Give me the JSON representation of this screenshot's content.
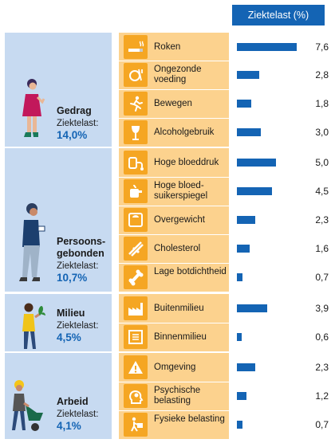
{
  "header": {
    "column_title": "Ziektelast (%)"
  },
  "chart_data": {
    "type": "bar",
    "title": "",
    "ylabel": "Ziektelast (%)",
    "xlim": [
      0,
      7.6
    ],
    "groups": [
      {
        "name": "Gedrag",
        "label": "Ziektelast:",
        "total": "14,0%",
        "icon": "woman-smoking-icon",
        "items": [
          {
            "label": "Roken",
            "value": 7.6,
            "display": "7,6",
            "icon": "cigarette-icon"
          },
          {
            "label": "Ongezonde voeding",
            "value": 2.8,
            "display": "2,8",
            "icon": "food-icon"
          },
          {
            "label": "Bewegen",
            "value": 1.8,
            "display": "1,8",
            "icon": "running-icon"
          },
          {
            "label": "Alcoholgebruik",
            "value": 3.0,
            "display": "3,0",
            "icon": "wine-glass-icon"
          }
        ]
      },
      {
        "name": "Persoons-gebonden",
        "label": "Ziektelast:",
        "total": "10,7%",
        "icon": "older-woman-cup-icon",
        "items": [
          {
            "label": "Hoge bloeddruk",
            "value": 5.0,
            "display": "5,0",
            "icon": "blood-pressure-icon"
          },
          {
            "label": "Hoge bloed-suikerspiegel",
            "value": 4.5,
            "display": "4,5",
            "icon": "glucose-meter-icon"
          },
          {
            "label": "Overgewicht",
            "value": 2.3,
            "display": "2,3",
            "icon": "scale-icon"
          },
          {
            "label": "Cholesterol",
            "value": 1.6,
            "display": "1,6",
            "icon": "cholesterol-icon"
          },
          {
            "label": "Lage botdichtheid",
            "value": 0.7,
            "display": "0,7",
            "icon": "bone-icon"
          }
        ]
      },
      {
        "name": "Milieu",
        "label": "Ziektelast:",
        "total": "4,5%",
        "icon": "woman-plant-icon",
        "items": [
          {
            "label": "Buitenmilieu",
            "value": 3.9,
            "display": "3,9",
            "icon": "factory-icon"
          },
          {
            "label": "Binnenmilieu",
            "value": 0.6,
            "display": "0,6",
            "icon": "ventilation-icon"
          }
        ]
      },
      {
        "name": "Arbeid",
        "label": "Ziektelast:",
        "total": "4,1%",
        "icon": "worker-wheelbarrow-icon",
        "items": [
          {
            "label": "Omgeving",
            "value": 2.3,
            "display": "2,3",
            "icon": "hazard-icon"
          },
          {
            "label": "Psychische belasting",
            "value": 1.2,
            "display": "1,2",
            "icon": "head-stress-icon"
          },
          {
            "label": "Fysieke belasting",
            "value": 0.7,
            "display": "0,7",
            "icon": "lifting-worker-icon"
          }
        ]
      }
    ]
  },
  "colors": {
    "header": "#1464b4",
    "bar": "#1464b4",
    "group_bg": "#c7daf1",
    "row_bg": "#fcd28e",
    "icon_bg": "#f5a623",
    "total_text": "#1464b4"
  }
}
